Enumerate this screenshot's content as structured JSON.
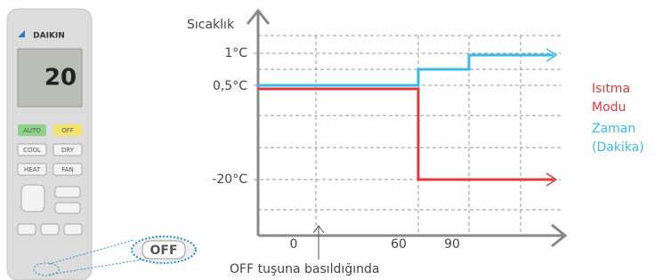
{
  "remote": {
    "brand": "DAIKIN",
    "display": "20",
    "buttons": [
      "AUTO",
      "OFF",
      "COOL",
      "DRY",
      "HEAT",
      "FAN"
    ],
    "zoom_label": "OFF"
  },
  "graph": {
    "y_axis_label": "Sıcaklık",
    "y_labels": [
      "1°C",
      "0,5°C",
      "-20°C"
    ],
    "x_labels": [
      "0",
      "60",
      "90"
    ],
    "annotation": "OFF tuşuna basıldığında",
    "legend": [
      {
        "lines": [
          "Isıtma",
          "Modu"
        ]
      },
      {
        "lines": [
          "Zaman",
          "(Dakika)"
        ]
      }
    ]
  }
}
